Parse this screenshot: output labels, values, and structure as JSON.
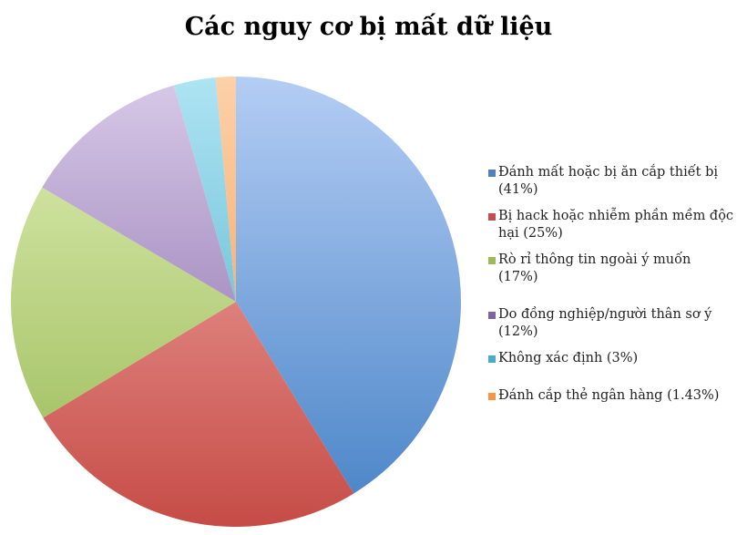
{
  "chart_data": {
    "type": "pie",
    "title": "Các nguy cơ bị mất dữ liệu",
    "legend_position": "right",
    "start_angle": "top, clockwise",
    "slices": [
      {
        "label": "Đánh mất hoặc bị ăn cắp thiết bị (41%)",
        "value": 41,
        "color": "#4f81bd",
        "light": "#b4cdf4",
        "dark": "#4682c6"
      },
      {
        "label": "Bị hack hoặc nhiễm phần mềm độc hại (25%)",
        "value": 25,
        "color": "#c0504d",
        "light": "#f6b4b2",
        "dark": "#c64c46"
      },
      {
        "label": "Rò rỉ thông tin ngoài ý muốn (17%)",
        "value": 17,
        "color": "#9bbb59",
        "light": "#e0efb6",
        "dark": "#97b853"
      },
      {
        "label": "Do đồng nghiệp/người thân sơ ý (12%)",
        "value": 12,
        "color": "#8064a2",
        "light": "#d8c9e8",
        "dark": "#7c5fa0"
      },
      {
        "label": "Không xác định (3%)",
        "value": 3,
        "color": "#4bacc6",
        "light": "#aee4f3",
        "dark": "#44a8c4"
      },
      {
        "label": "Đánh cắp thẻ ngân hàng (1.43%)",
        "value": 1.43,
        "color": "#f79646",
        "light": "#fcd1a9",
        "dark": "#f59343"
      }
    ]
  }
}
